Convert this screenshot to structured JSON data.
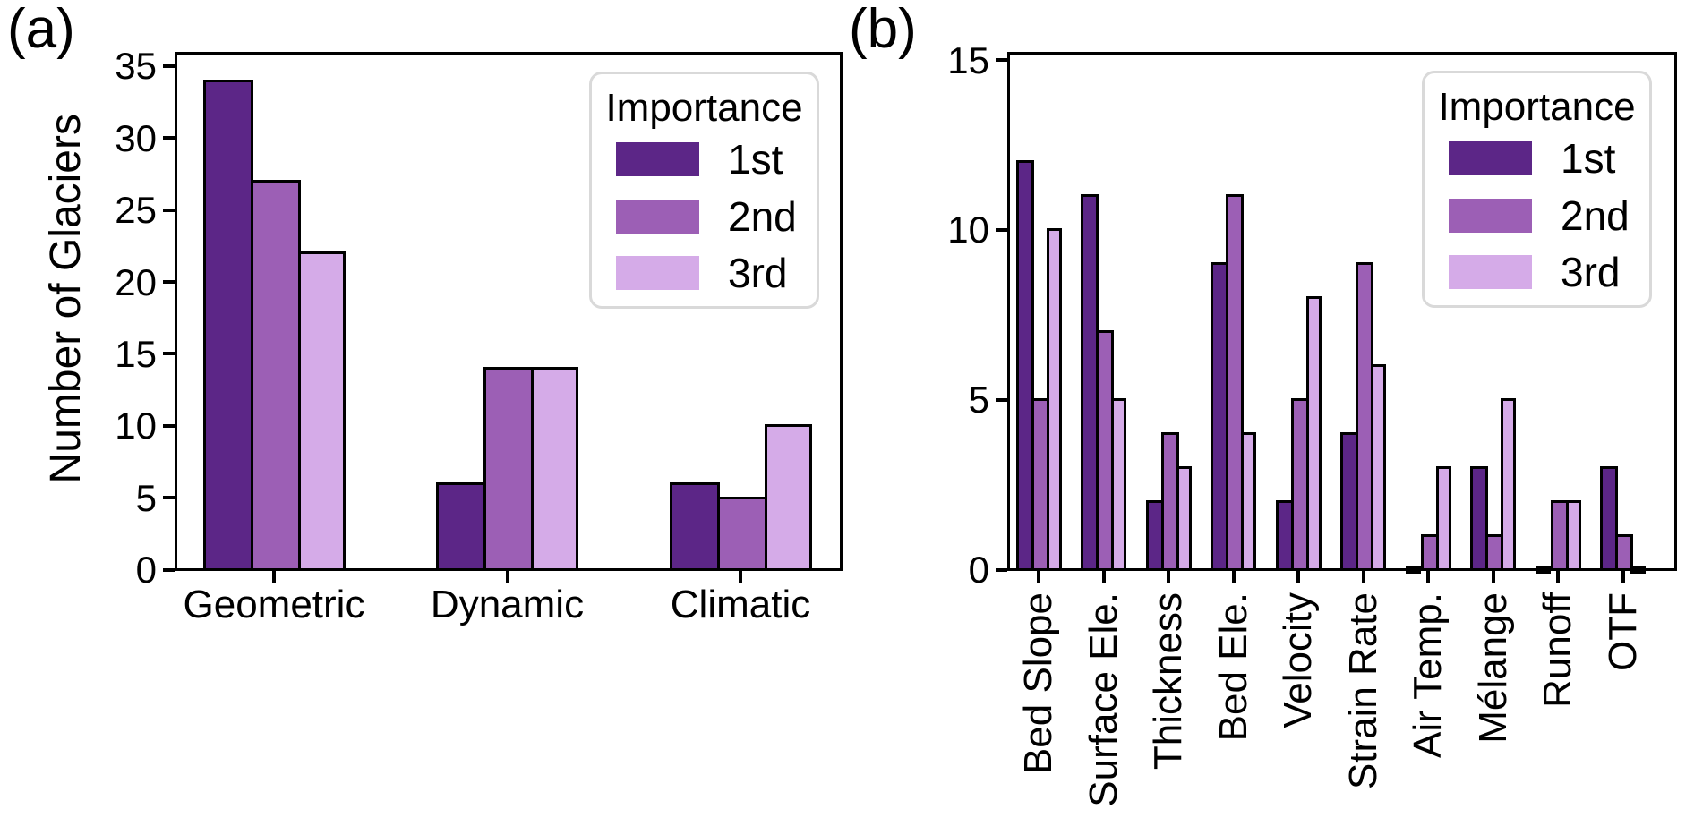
{
  "chart_data": [
    {
      "type": "bar",
      "panel_label": "(a)",
      "title": "",
      "xlabel": "",
      "ylabel": "Number of Glaciers",
      "categories": [
        "Geometric",
        "Dynamic",
        "Climatic"
      ],
      "series": [
        {
          "name": "1st",
          "values": [
            34,
            6,
            6
          ]
        },
        {
          "name": "2nd",
          "values": [
            27,
            14,
            5
          ]
        },
        {
          "name": "3rd",
          "values": [
            22,
            14,
            10
          ]
        }
      ],
      "ylim": [
        0,
        35.9
      ],
      "yticks": [
        0,
        5,
        10,
        15,
        20,
        25,
        30,
        35
      ],
      "grid": false,
      "xtick_rotation": 0,
      "legend": {
        "title": "Importance",
        "entries": [
          "1st",
          "2nd",
          "3rd"
        ],
        "position": "upper right"
      }
    },
    {
      "type": "bar",
      "panel_label": "(b)",
      "title": "",
      "xlabel": "",
      "ylabel": "",
      "categories": [
        "Bed Slope",
        "Surface Ele.",
        "Thickness",
        "Bed Ele.",
        "Velocity",
        "Strain Rate",
        "Air Temp.",
        "Mélange",
        "Runoff",
        "OTF"
      ],
      "series": [
        {
          "name": "1st",
          "values": [
            12,
            11,
            2,
            9,
            2,
            4,
            0,
            3,
            0,
            3
          ]
        },
        {
          "name": "2nd",
          "values": [
            5,
            7,
            4,
            11,
            5,
            9,
            1,
            1,
            2,
            1
          ]
        },
        {
          "name": "3rd",
          "values": [
            10,
            5,
            3,
            4,
            8,
            6,
            3,
            5,
            2,
            0
          ]
        }
      ],
      "ylim": [
        0,
        15.2
      ],
      "yticks": [
        0,
        5,
        10,
        15
      ],
      "grid": false,
      "xtick_rotation": 90,
      "legend": {
        "title": "Importance",
        "entries": [
          "1st",
          "2nd",
          "3rd"
        ],
        "position": "upper right"
      }
    }
  ],
  "style": {
    "series_colors": {
      "1st": "#5c2687",
      "2nd": "#9c5fb5",
      "3rd": "#d5abe8"
    },
    "bar_edge_color": "#000000",
    "axis_color": "#000000",
    "legend_border_color": "#d9d9d9",
    "background": "#ffffff"
  }
}
